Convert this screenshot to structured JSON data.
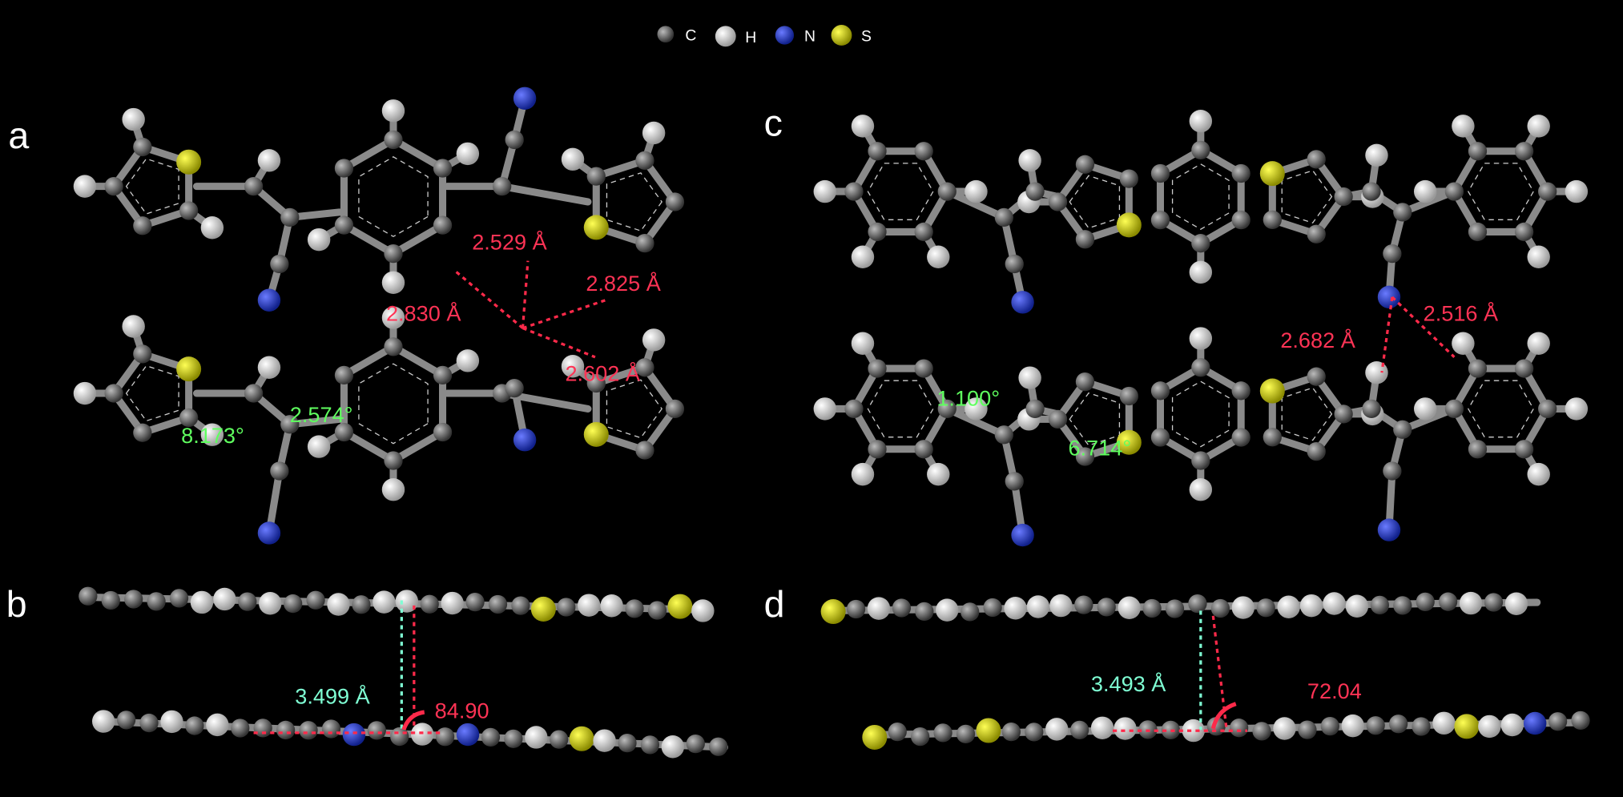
{
  "legend": {
    "items": [
      "C",
      "H",
      "N",
      "S"
    ]
  },
  "panels": {
    "a": "a",
    "b": "b",
    "c": "c",
    "d": "d"
  },
  "annotations": {
    "a": {
      "distances": [
        "2.529 Å",
        "2.825 Å",
        "2.830 Å",
        "2.602 Å"
      ],
      "angles": [
        "8.173°",
        "2.574°"
      ]
    },
    "b": {
      "distance": "3.499 Å",
      "angle": "84.90"
    },
    "c": {
      "distances": [
        "2.682 Å",
        "2.516 Å"
      ],
      "angles": [
        "1.100°",
        "6.714°"
      ]
    },
    "d": {
      "distance": "3.493 Å",
      "angle": "72.04"
    }
  }
}
